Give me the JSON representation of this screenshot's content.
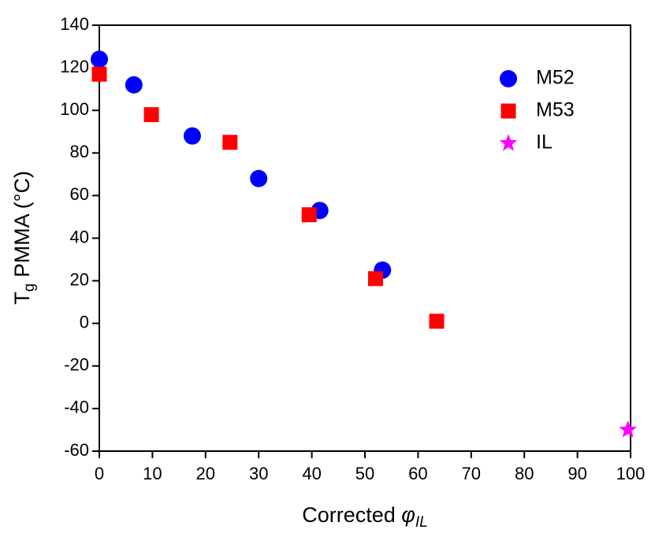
{
  "chart_data": {
    "type": "scatter",
    "ylabel_parts": [
      "T",
      "g",
      " PMMA (°C)"
    ],
    "xlabel_parts": [
      "Corrected ",
      "φ",
      "IL"
    ],
    "xlim": [
      0,
      100
    ],
    "xticks": [
      0,
      10,
      20,
      30,
      40,
      50,
      60,
      70,
      80,
      90,
      100
    ],
    "ylim": [
      -60,
      140
    ],
    "yticks": [
      -60,
      -40,
      -20,
      0,
      20,
      40,
      60,
      80,
      100,
      120,
      140
    ],
    "legend": "upper right",
    "series": [
      {
        "name": "M52",
        "color": "#0000ff",
        "marker": "circle",
        "x": [
          0,
          6.5,
          17.5,
          30,
          41.5,
          53.3
        ],
        "values": [
          124,
          112,
          88,
          68,
          53,
          25
        ]
      },
      {
        "name": "M53",
        "color": "#ff0000",
        "marker": "square",
        "x": [
          0,
          9.8,
          24.6,
          39.5,
          52,
          63.5
        ],
        "values": [
          117,
          98,
          85,
          51,
          21,
          1
        ]
      },
      {
        "name": "IL",
        "color": "#ff00ff",
        "marker": "star",
        "x": [
          99.5
        ],
        "values": [
          -50
        ]
      }
    ]
  }
}
